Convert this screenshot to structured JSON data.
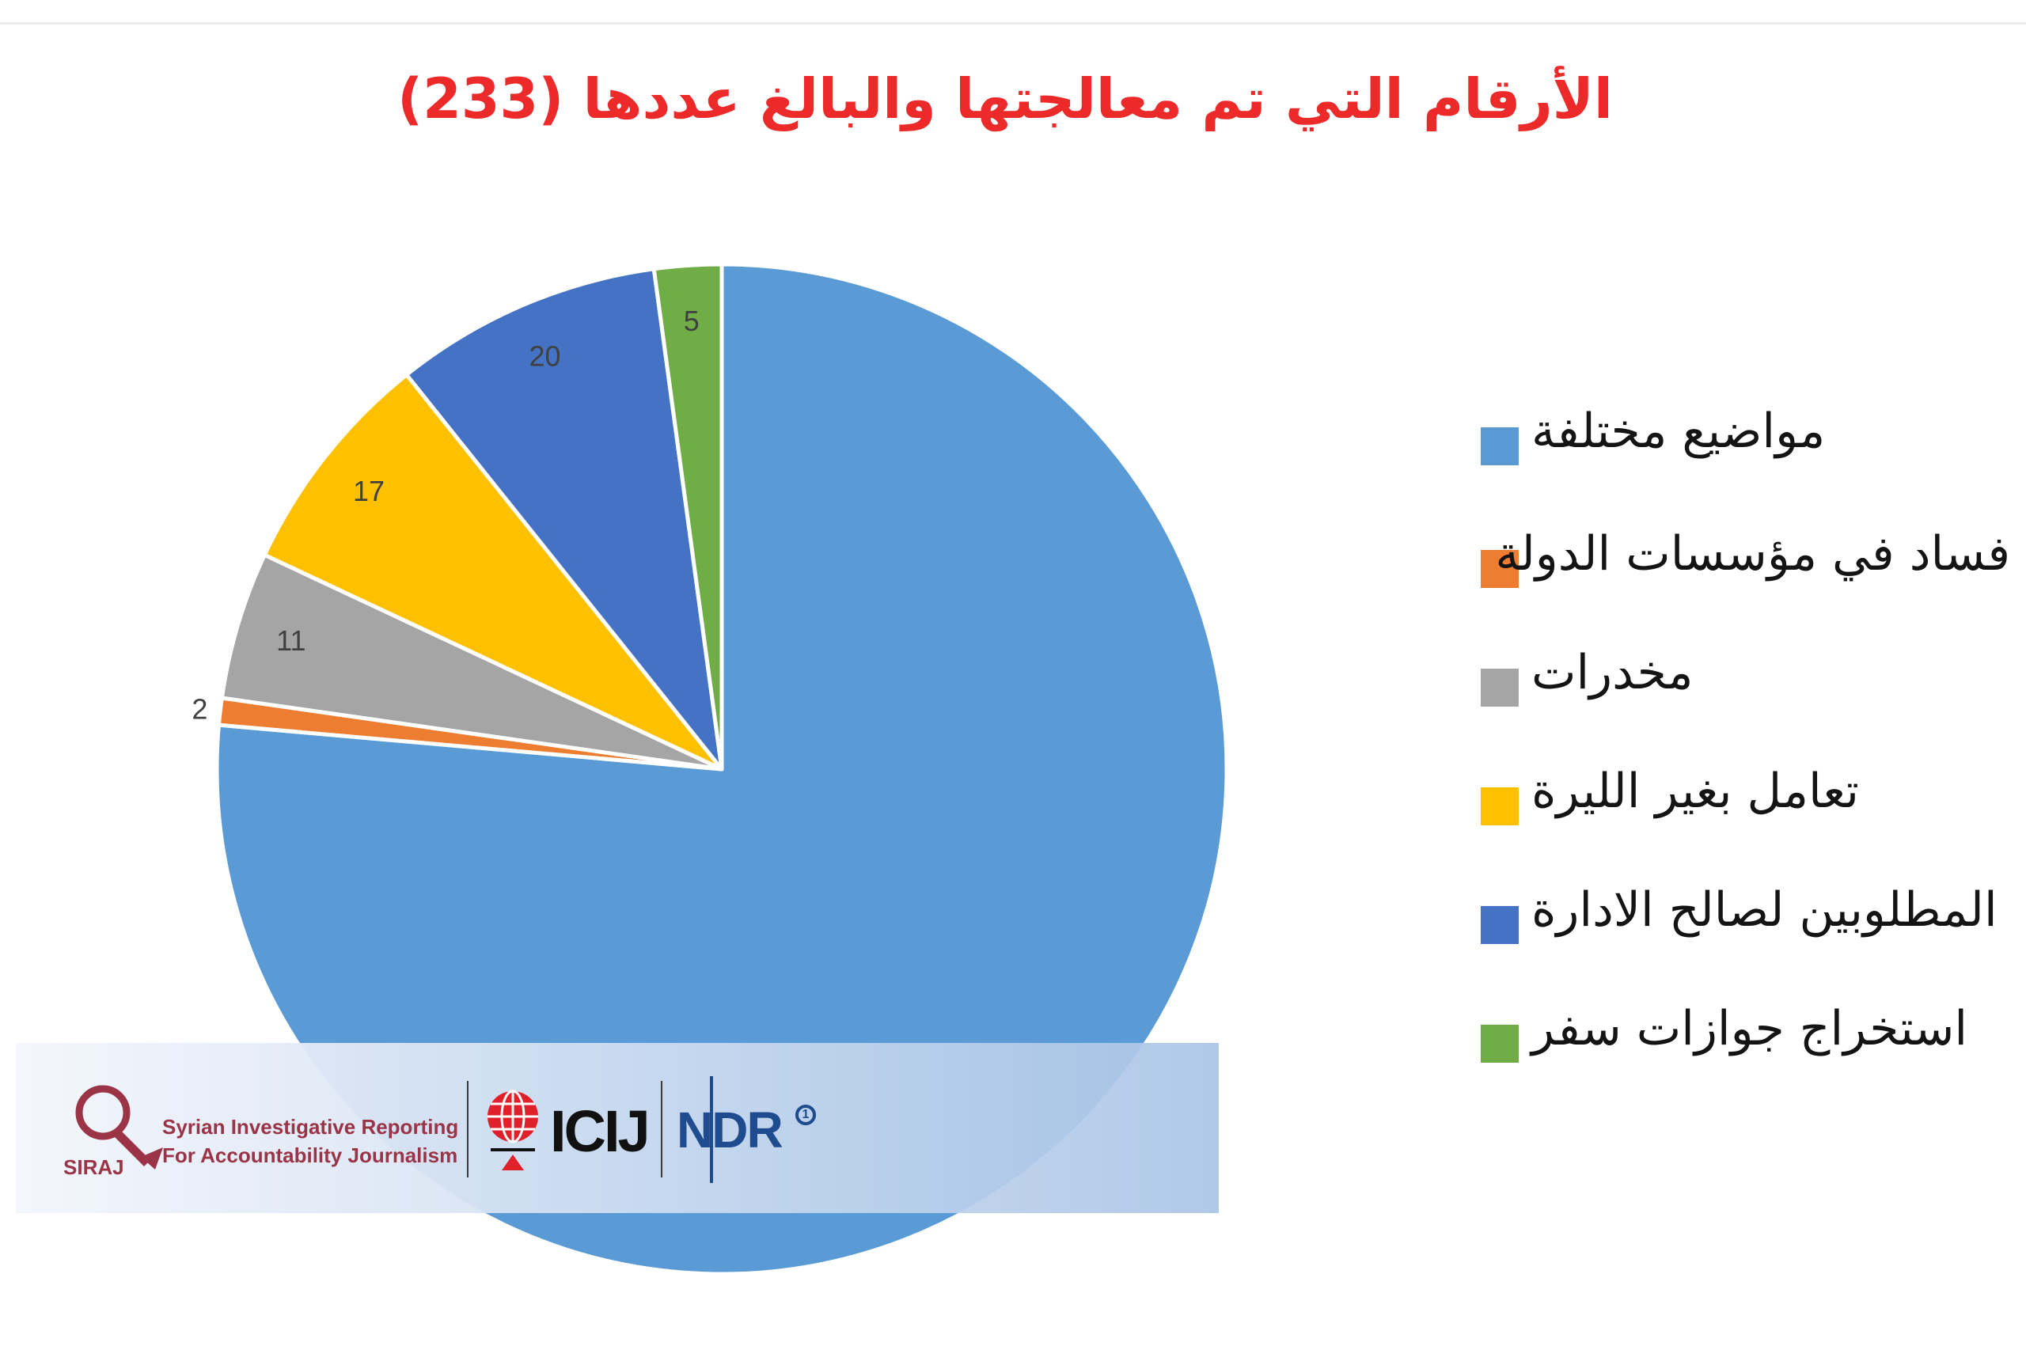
{
  "chart_data": {
    "type": "pie",
    "title": "الأرقام التي تم معالجتها والبالغ عددها (233)",
    "slices": [
      {
        "label": "مواضيع مختلفة",
        "value": 178,
        "color": "#5b9bd5"
      },
      {
        "label": "فساد في مؤسسات الدولة",
        "value": 2,
        "color": "#ed7d31"
      },
      {
        "label": "مخدرات",
        "value": 11,
        "color": "#a5a5a5"
      },
      {
        "label": "تعامل بغير الليرة",
        "value": 17,
        "color": "#ffc000"
      },
      {
        "label": "المطلوبين لصالح الادارة",
        "value": 20,
        "color": "#4472c4"
      },
      {
        "label": "استخراج جوازات سفر",
        "value": 5,
        "color": "#70ad47"
      }
    ],
    "data_labels": [
      "",
      "2",
      "11",
      "17",
      "20",
      "5"
    ],
    "legend_placement": "right"
  },
  "logos": {
    "siraj": {
      "name": "SIRAJ",
      "line1": "Syrian Investigative Reporting",
      "line2": "For Accountability Journalism",
      "color": "#9a3446"
    },
    "icij": {
      "name": "ICIJ",
      "accent": "#e0202a"
    },
    "ndr": {
      "name": "NDR",
      "badge": "1",
      "color": "#1f4b8f"
    }
  }
}
